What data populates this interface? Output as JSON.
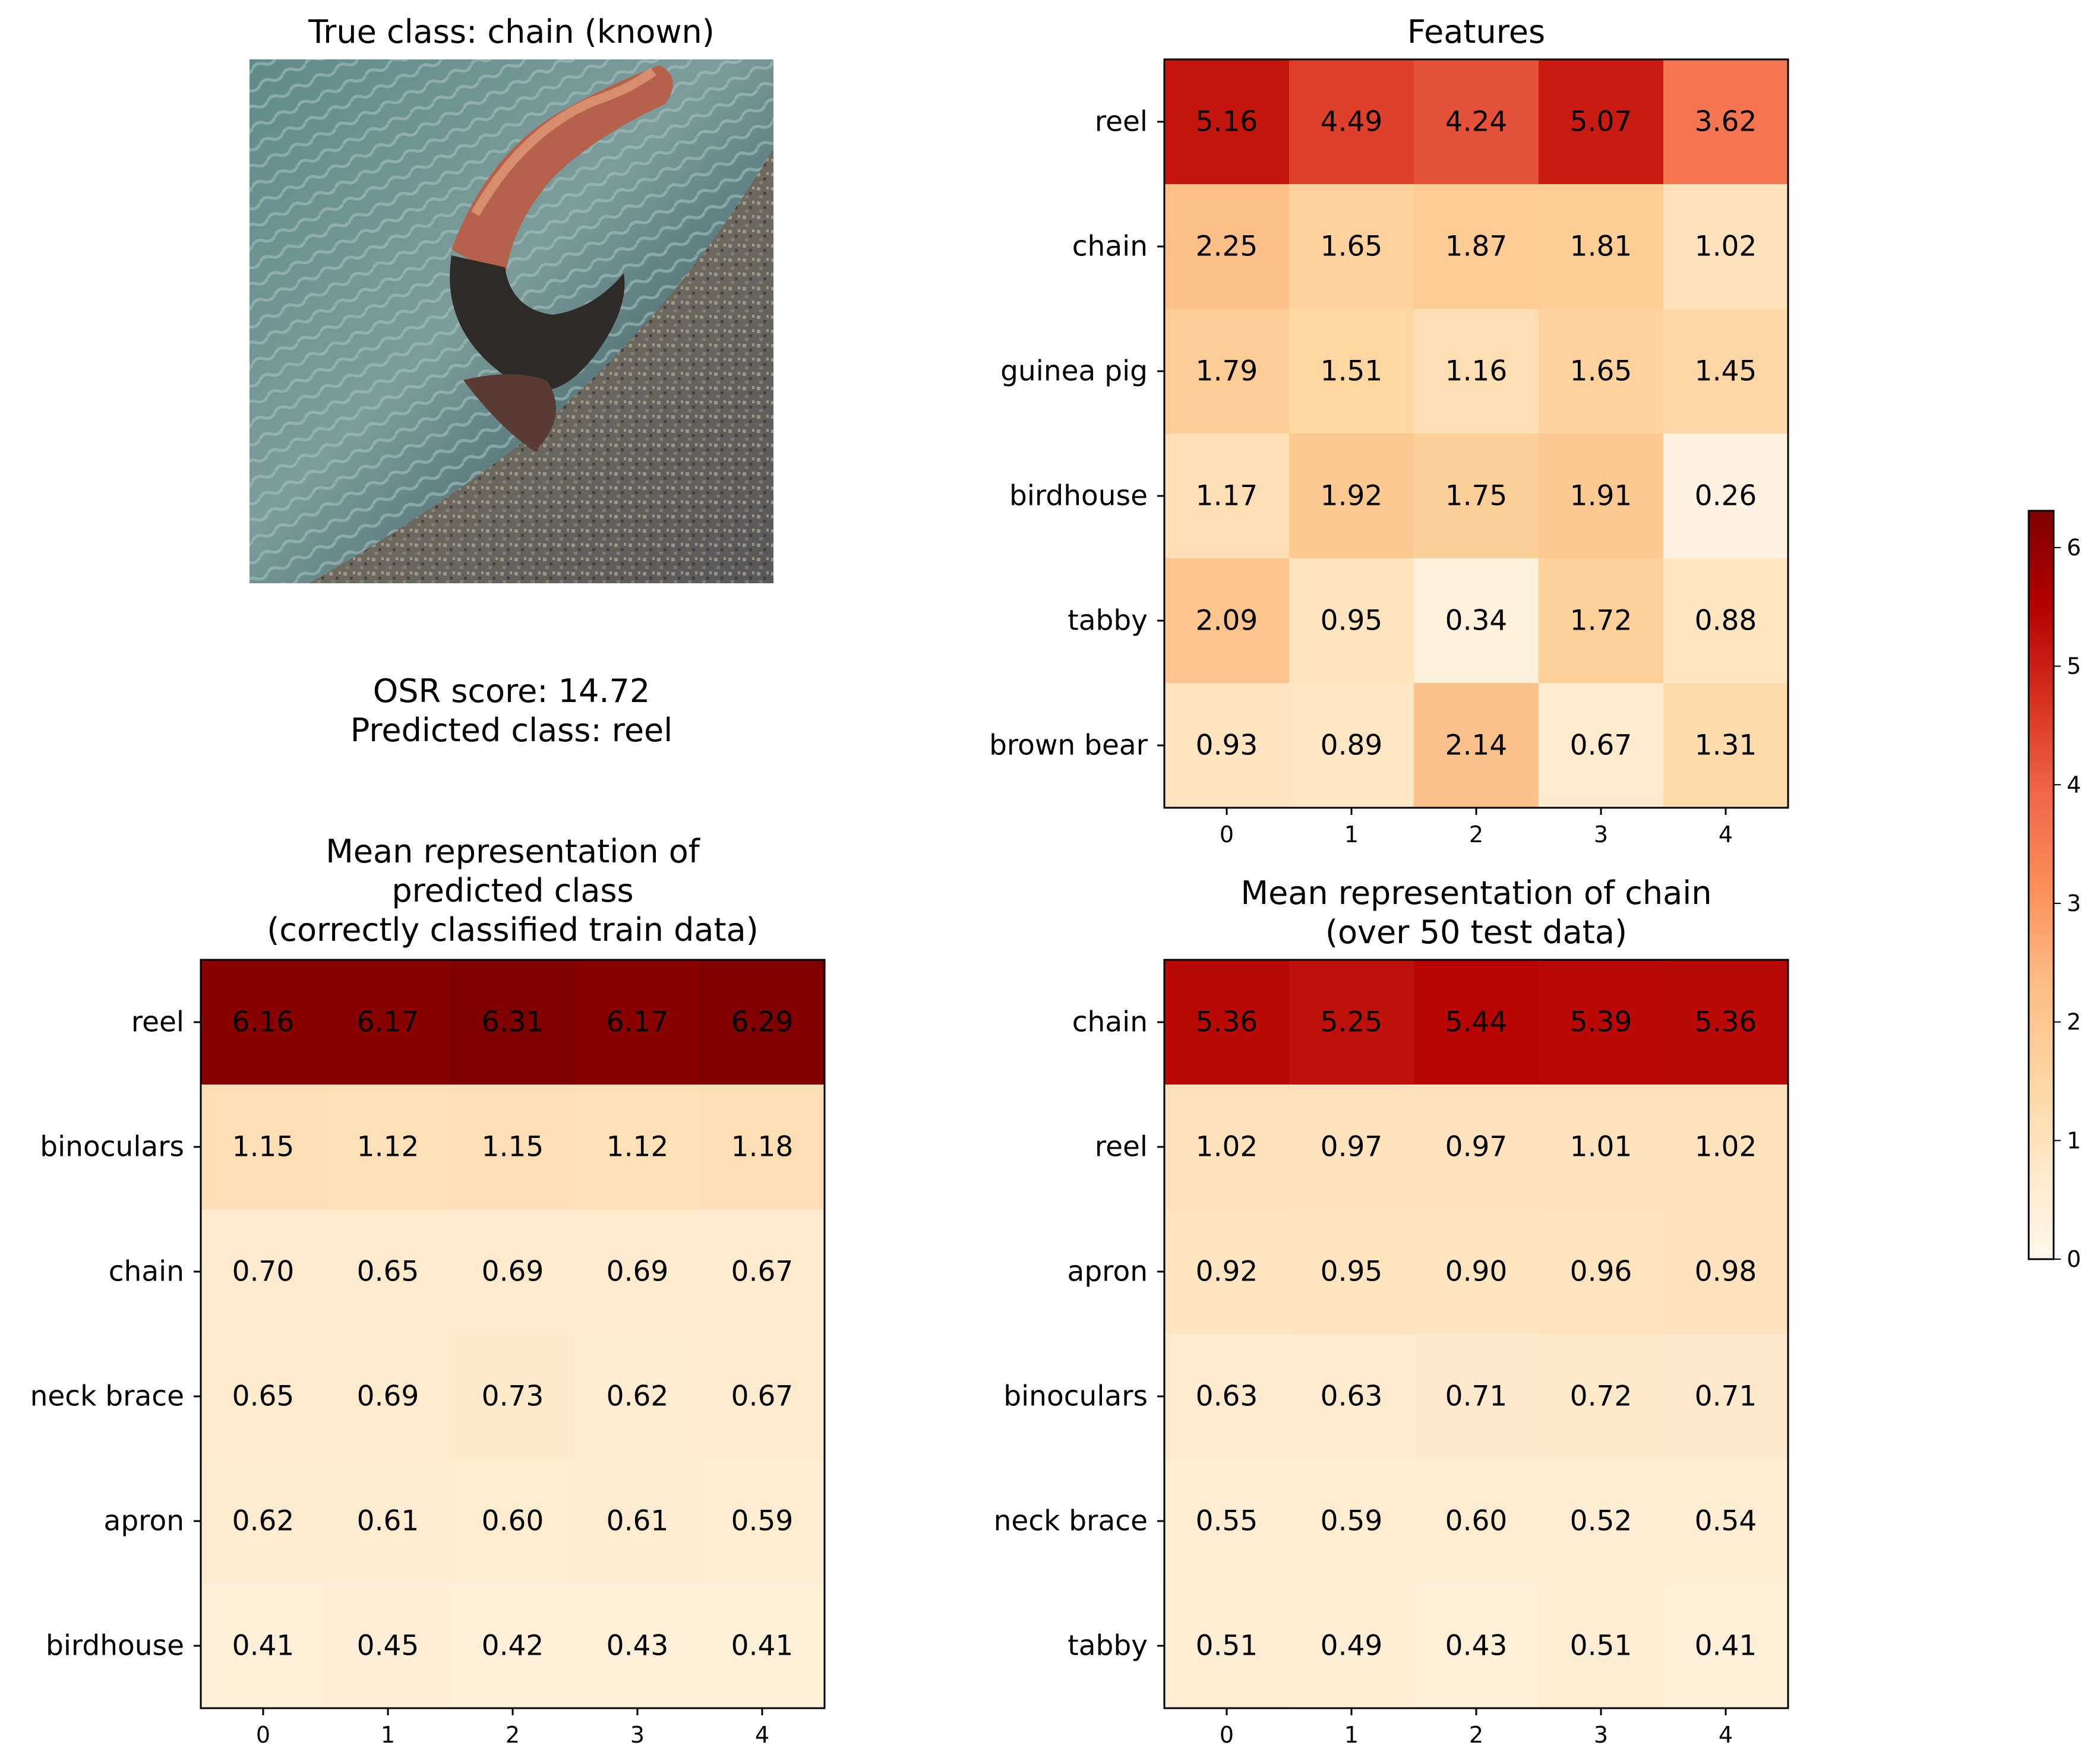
{
  "figure": {
    "image_panel": {
      "title": "True class: chain (known)",
      "image_description_icon": "photo-of-chain-icon"
    },
    "info_text": {
      "line1": "OSR score: 14.72",
      "line2": "Predicted class: reel"
    },
    "colormap": {
      "name": "OrRd",
      "stops": [
        "#fff7ec",
        "#fee8c8",
        "#fdd49e",
        "#fdbb84",
        "#fc8d59",
        "#ef6548",
        "#d7301f",
        "#b30000",
        "#7f0000"
      ],
      "vmin": 0,
      "vmax": 6.31
    },
    "colorbar": {
      "ticks": [
        "0",
        "1",
        "2",
        "3",
        "4",
        "5",
        "6"
      ]
    }
  },
  "chart_data": [
    {
      "type": "heatmap",
      "id": "features",
      "title": [
        "Features"
      ],
      "rows": [
        "reel",
        "chain",
        "guinea pig",
        "birdhouse",
        "tabby",
        "brown bear"
      ],
      "columns": [
        "0",
        "1",
        "2",
        "3",
        "4"
      ],
      "values": [
        [
          5.16,
          4.49,
          4.24,
          5.07,
          3.62
        ],
        [
          2.25,
          1.65,
          1.87,
          1.81,
          1.02
        ],
        [
          1.79,
          1.51,
          1.16,
          1.65,
          1.45
        ],
        [
          1.17,
          1.92,
          1.75,
          1.91,
          0.26
        ],
        [
          2.09,
          0.95,
          0.34,
          1.72,
          0.88
        ],
        [
          0.93,
          0.89,
          2.14,
          0.67,
          1.31
        ]
      ]
    },
    {
      "type": "heatmap",
      "id": "mean-predicted",
      "title": [
        "Mean representation of",
        "predicted class",
        "(correctly classified train data)"
      ],
      "rows": [
        "reel",
        "binoculars",
        "chain",
        "neck brace",
        "apron",
        "birdhouse"
      ],
      "columns": [
        "0",
        "1",
        "2",
        "3",
        "4"
      ],
      "values": [
        [
          6.16,
          6.17,
          6.31,
          6.17,
          6.29
        ],
        [
          1.15,
          1.12,
          1.15,
          1.12,
          1.18
        ],
        [
          0.7,
          0.65,
          0.69,
          0.69,
          0.67
        ],
        [
          0.65,
          0.69,
          0.73,
          0.62,
          0.67
        ],
        [
          0.62,
          0.61,
          0.6,
          0.61,
          0.59
        ],
        [
          0.41,
          0.45,
          0.42,
          0.43,
          0.41
        ]
      ]
    },
    {
      "type": "heatmap",
      "id": "mean-chain",
      "title": [
        "Mean representation of chain",
        "(over 50 test data)"
      ],
      "rows": [
        "chain",
        "reel",
        "apron",
        "binoculars",
        "neck brace",
        "tabby"
      ],
      "columns": [
        "0",
        "1",
        "2",
        "3",
        "4"
      ],
      "values": [
        [
          5.36,
          5.25,
          5.44,
          5.39,
          5.36
        ],
        [
          1.02,
          0.97,
          0.97,
          1.01,
          1.02
        ],
        [
          0.92,
          0.95,
          0.9,
          0.96,
          0.98
        ],
        [
          0.63,
          0.63,
          0.71,
          0.72,
          0.71
        ],
        [
          0.55,
          0.59,
          0.6,
          0.52,
          0.54
        ],
        [
          0.51,
          0.49,
          0.43,
          0.51,
          0.41
        ]
      ]
    }
  ]
}
